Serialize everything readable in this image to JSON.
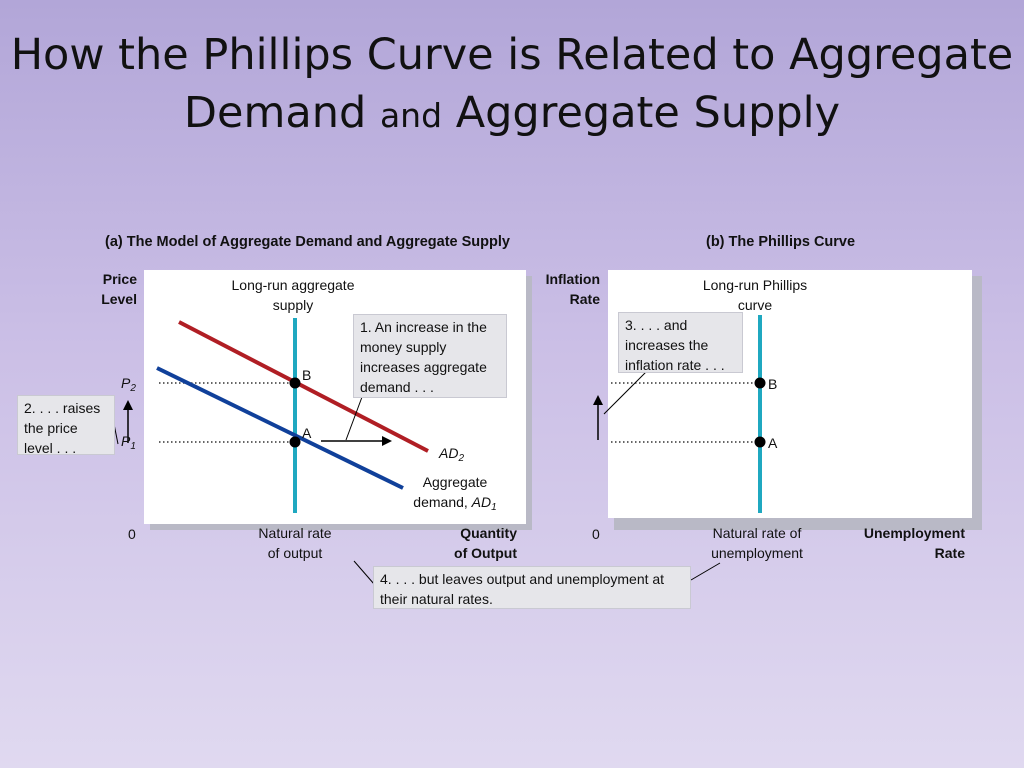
{
  "slide": {
    "title_line1": "How the Phillips Curve is Related to Aggregate",
    "title_line2_a": "Demand ",
    "title_line2_b": "and",
    "title_line2_c": " Aggregate Supply"
  },
  "panel_a": {
    "title": "(a) The Model of Aggregate Demand and Aggregate Supply",
    "y_axis": {
      "line1": "Price",
      "line2": "Level"
    },
    "x_axis": {
      "line1": "Quantity",
      "line2": "of Output"
    },
    "origin": "0",
    "lras": {
      "line1": "Long-run aggregate",
      "line2": "supply"
    },
    "natural_rate": {
      "line1": "Natural rate",
      "line2": "of output"
    },
    "p2": {
      "letter": "P",
      "sub": "2"
    },
    "p1": {
      "letter": "P",
      "sub": "1"
    },
    "point_b": "B",
    "point_a": "A",
    "ad2": {
      "letter": "AD",
      "sub": "2"
    },
    "ad1": {
      "line1": "Aggregate",
      "line2_text": "demand, ",
      "line2_letter": "AD",
      "line2_sub": "1"
    },
    "callout_1": "1. An increase in the money supply increases aggregate demand . . .",
    "callout_2": "2. . . . raises the price level . . ."
  },
  "panel_b": {
    "title": "(b) The Phillips Curve",
    "y_axis": {
      "line1": "Inflation",
      "line2": "Rate"
    },
    "x_axis": {
      "line1": "Unemployment",
      "line2": "Rate"
    },
    "origin": "0",
    "lrpc": {
      "line1": "Long-run Phillips",
      "line2": "curve"
    },
    "natural_rate": {
      "line1": "Natural rate of",
      "line2": "unemployment"
    },
    "point_b": "B",
    "point_a": "A",
    "callout_3": "3. . . . and increases the inflation rate . . ."
  },
  "callout_4": "4. . . . but leaves output and unemployment at their natural rates.",
  "colors": {
    "lras_line": "#1fa8c0",
    "ad2_line": "#b01e24",
    "ad1_line": "#10409a",
    "callout_bg": "#e6e6ea"
  }
}
